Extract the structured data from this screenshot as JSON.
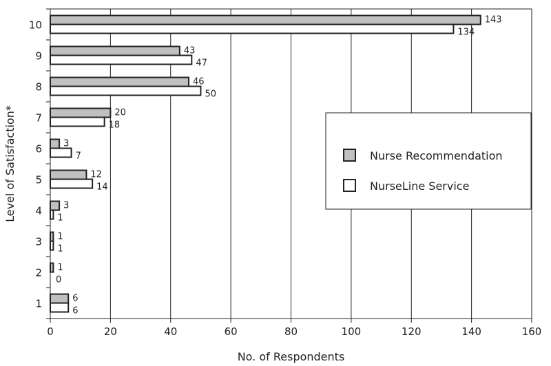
{
  "chart_data": {
    "type": "bar",
    "orientation": "horizontal",
    "categories": [
      "1",
      "2",
      "3",
      "4",
      "5",
      "6",
      "7",
      "8",
      "9",
      "10"
    ],
    "series": [
      {
        "name": "Nurse Recommendation",
        "color": "#c0c0c0",
        "values": [
          6,
          1,
          1,
          3,
          12,
          3,
          20,
          46,
          43,
          143
        ]
      },
      {
        "name": "NurseLine Service",
        "color": "#ffffff",
        "values": [
          6,
          0,
          1,
          1,
          14,
          7,
          18,
          50,
          47,
          134
        ]
      }
    ],
    "xlabel": "No. of Respondents",
    "ylabel": "Level of Satisfaction*",
    "xlim": [
      0,
      160
    ],
    "xticks": [
      "0",
      "20",
      "40",
      "60",
      "80",
      "100",
      "120",
      "140",
      "160"
    ],
    "grid": "vertical",
    "legend_position": "right-middle"
  }
}
